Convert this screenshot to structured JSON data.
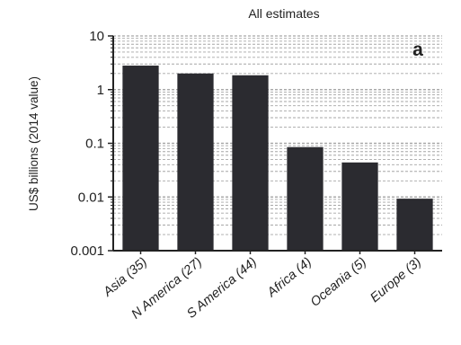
{
  "chart_data": {
    "type": "bar",
    "title": "All estimates",
    "panel_label": "a",
    "ylabel": "US$ billions (2014 value)",
    "xlabel": "",
    "yscale": "log",
    "ylim": [
      0.001,
      10
    ],
    "yticks": [
      {
        "value": 0.001,
        "label": "0.001"
      },
      {
        "value": 0.01,
        "label": "0.01"
      },
      {
        "value": 0.1,
        "label": "0.1"
      },
      {
        "value": 1,
        "label": "1"
      },
      {
        "value": 10,
        "label": "10"
      }
    ],
    "grid": true,
    "categories": [
      "Asia (35)",
      "N America (27)",
      "S America (44)",
      "Africa (4)",
      "Oceania (5)",
      "Europe (3)"
    ],
    "values": [
      2.8,
      2.0,
      1.85,
      0.085,
      0.044,
      0.0093
    ],
    "bar_color": "#2b2b30",
    "grid_color": "#a6a6a6"
  }
}
